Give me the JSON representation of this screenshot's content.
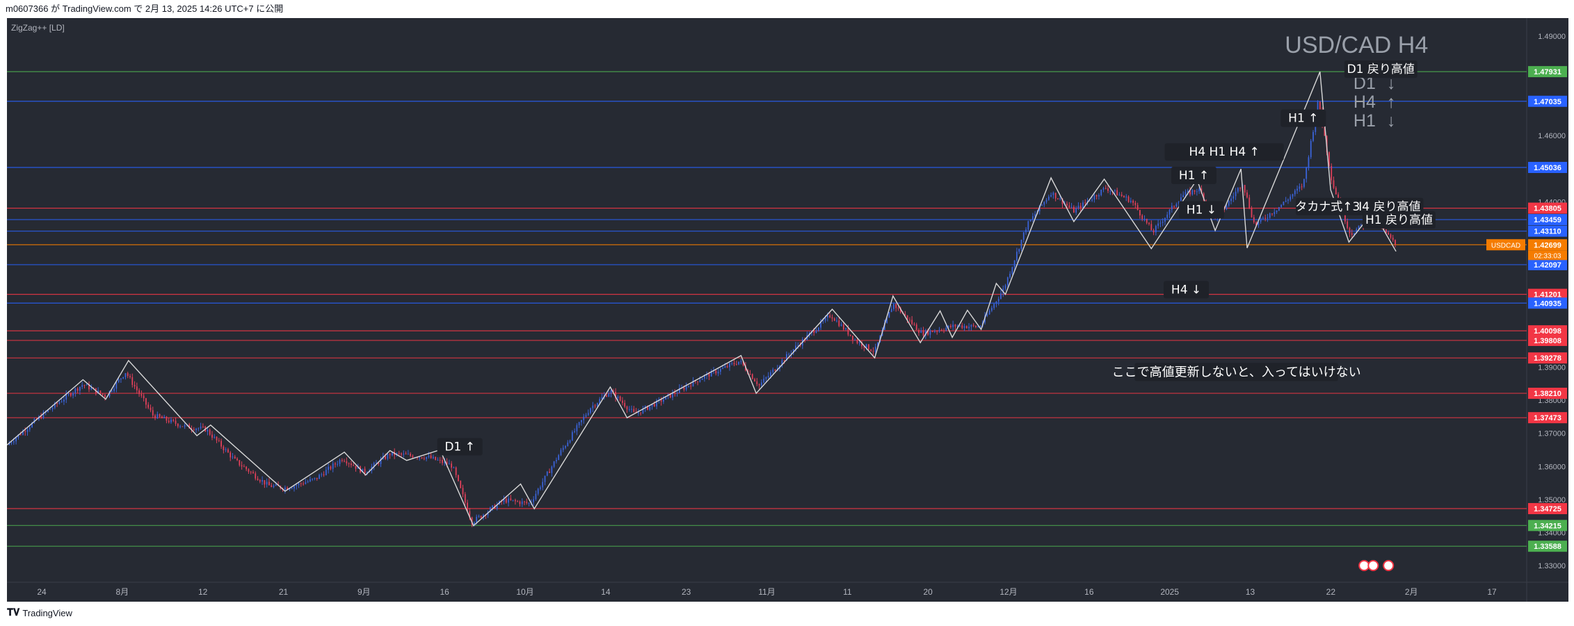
{
  "header": {
    "text": "m0607366 が TradingView.com で 2月 13, 2025 14:26 UTC+7 に公開"
  },
  "footer": {
    "logo_icon": "tradingview-logo-icon",
    "brand": "TradingView"
  },
  "colors": {
    "background": "#262a33",
    "candle_up": "#3a63d8",
    "candle_down": "#e0405a",
    "zigzag": "#d8d8d8",
    "support_line": "#f23645",
    "resistance_line": "#2962ff",
    "green_line": "#4caf50",
    "orange_label": "#f57c00"
  },
  "chart_data": {
    "type": "line",
    "title": "USD/CAD H4",
    "symbol": "USDCAD",
    "countdown": "02:33:03",
    "indicator_label": "ZigZag++ [LD]",
    "ylim": [
      1.325,
      1.4955
    ],
    "y_ticks": [
      {
        "value": 1.49,
        "label": "1.49000"
      },
      {
        "value": 1.46,
        "label": "1.46000"
      },
      {
        "value": 1.44,
        "label": "1.44000"
      },
      {
        "value": 1.39,
        "label": "1.39000"
      },
      {
        "value": 1.38,
        "label": "1.38000"
      },
      {
        "value": 1.37,
        "label": "1.37000"
      },
      {
        "value": 1.36,
        "label": "1.36000"
      },
      {
        "value": 1.35,
        "label": "1.35000"
      },
      {
        "value": 1.34,
        "label": "1.34000"
      },
      {
        "value": 1.33,
        "label": "1.33000"
      }
    ],
    "x_labels": [
      "24",
      "8月",
      "12",
      "21",
      "9月",
      "16",
      "10月",
      "14",
      "23",
      "11月",
      "11",
      "20",
      "12月",
      "16",
      "2025",
      "13",
      "22",
      "2月",
      "17"
    ],
    "price_badges": [
      {
        "value": 1.47931,
        "label": "1.47931",
        "color": "#4caf50"
      },
      {
        "value": 1.47035,
        "label": "1.47035",
        "color": "#2962ff"
      },
      {
        "value": 1.45036,
        "label": "1.45036",
        "color": "#2962ff"
      },
      {
        "value": 1.43805,
        "label": "1.43805",
        "color": "#f23645"
      },
      {
        "value": 1.43459,
        "label": "1.43459",
        "color": "#2962ff"
      },
      {
        "value": 1.4311,
        "label": "1.43110",
        "color": "#2962ff"
      },
      {
        "value": 1.42699,
        "label": "1.42699",
        "color": "#f57c00"
      },
      {
        "value": 1.42097,
        "label": "1.42097",
        "color": "#2962ff"
      },
      {
        "value": 1.41201,
        "label": "1.41201",
        "color": "#f23645"
      },
      {
        "value": 1.40935,
        "label": "1.40935",
        "color": "#2962ff"
      },
      {
        "value": 1.40098,
        "label": "1.40098",
        "color": "#f23645"
      },
      {
        "value": 1.39808,
        "label": "1.39808",
        "color": "#f23645"
      },
      {
        "value": 1.39278,
        "label": "1.39278",
        "color": "#f23645"
      },
      {
        "value": 1.3821,
        "label": "1.38210",
        "color": "#f23645"
      },
      {
        "value": 1.37473,
        "label": "1.37473",
        "color": "#f23645"
      },
      {
        "value": 1.34725,
        "label": "1.34725",
        "color": "#f23645"
      },
      {
        "value": 1.34215,
        "label": "1.34215",
        "color": "#4caf50"
      },
      {
        "value": 1.33588,
        "label": "1.33588",
        "color": "#4caf50"
      }
    ],
    "zigzag_series": [
      {
        "t": 0,
        "p": 1.3665
      },
      {
        "t": 5,
        "p": 1.3862
      },
      {
        "t": 6.5,
        "p": 1.3803
      },
      {
        "t": 8,
        "p": 1.392
      },
      {
        "t": 12.5,
        "p": 1.3693
      },
      {
        "t": 13.4,
        "p": 1.3725
      },
      {
        "t": 18.3,
        "p": 1.3525
      },
      {
        "t": 22.2,
        "p": 1.3643
      },
      {
        "t": 23.6,
        "p": 1.3574
      },
      {
        "t": 25.2,
        "p": 1.3648
      },
      {
        "t": 26.3,
        "p": 1.3618
      },
      {
        "t": 28.5,
        "p": 1.365
      },
      {
        "t": 30.7,
        "p": 1.3421
      },
      {
        "t": 33.8,
        "p": 1.3547
      },
      {
        "t": 34.7,
        "p": 1.3472
      },
      {
        "t": 39.7,
        "p": 1.384
      },
      {
        "t": 40.8,
        "p": 1.3747
      },
      {
        "t": 48.3,
        "p": 1.3935
      },
      {
        "t": 49.3,
        "p": 1.3821
      },
      {
        "t": 54.3,
        "p": 1.4075
      },
      {
        "t": 57.1,
        "p": 1.3928
      },
      {
        "t": 58.3,
        "p": 1.4115
      },
      {
        "t": 60.1,
        "p": 1.3974
      },
      {
        "t": 61.4,
        "p": 1.407
      },
      {
        "t": 62.2,
        "p": 1.399
      },
      {
        "t": 63.2,
        "p": 1.4072
      },
      {
        "t": 64.1,
        "p": 1.4014
      },
      {
        "t": 65.1,
        "p": 1.4153
      },
      {
        "t": 65.7,
        "p": 1.412
      },
      {
        "t": 68.7,
        "p": 1.4472
      },
      {
        "t": 70.2,
        "p": 1.434
      },
      {
        "t": 72.2,
        "p": 1.4468
      },
      {
        "t": 75.3,
        "p": 1.4258
      },
      {
        "t": 78.3,
        "p": 1.4467
      },
      {
        "t": 79.5,
        "p": 1.4313
      },
      {
        "t": 81.2,
        "p": 1.4499
      },
      {
        "t": 81.6,
        "p": 1.426
      },
      {
        "t": 86.4,
        "p": 1.4793
      },
      {
        "t": 87.1,
        "p": 1.4436
      },
      {
        "t": 88.3,
        "p": 1.4278
      },
      {
        "t": 89.9,
        "p": 1.437
      },
      {
        "t": 91.4,
        "p": 1.425
      }
    ],
    "candle_series": [
      {
        "t": 0,
        "p": 1.3665
      },
      {
        "t": 2.4,
        "p": 1.3758
      },
      {
        "t": 4.3,
        "p": 1.3825
      },
      {
        "t": 5,
        "p": 1.3848
      },
      {
        "t": 6.5,
        "p": 1.3812
      },
      {
        "t": 7.8,
        "p": 1.3885
      },
      {
        "t": 9.6,
        "p": 1.3755
      },
      {
        "t": 11.6,
        "p": 1.3722
      },
      {
        "t": 13.1,
        "p": 1.3712
      },
      {
        "t": 15,
        "p": 1.3618
      },
      {
        "t": 17.2,
        "p": 1.3542
      },
      {
        "t": 18.4,
        "p": 1.3535
      },
      {
        "t": 20.3,
        "p": 1.3562
      },
      {
        "t": 22.1,
        "p": 1.3625
      },
      {
        "t": 23.5,
        "p": 1.3582
      },
      {
        "t": 25.2,
        "p": 1.3638
      },
      {
        "t": 27.7,
        "p": 1.3628
      },
      {
        "t": 29.3,
        "p": 1.3602
      },
      {
        "t": 30.6,
        "p": 1.3432
      },
      {
        "t": 32.7,
        "p": 1.3498
      },
      {
        "t": 34.4,
        "p": 1.3488
      },
      {
        "t": 36.4,
        "p": 1.3642
      },
      {
        "t": 38.4,
        "p": 1.3778
      },
      {
        "t": 39.7,
        "p": 1.3828
      },
      {
        "t": 41.3,
        "p": 1.3758
      },
      {
        "t": 43.4,
        "p": 1.3808
      },
      {
        "t": 45.7,
        "p": 1.3868
      },
      {
        "t": 48.2,
        "p": 1.3918
      },
      {
        "t": 49.5,
        "p": 1.3845
      },
      {
        "t": 51.7,
        "p": 1.3952
      },
      {
        "t": 54.2,
        "p": 1.4058
      },
      {
        "t": 55.9,
        "p": 1.3978
      },
      {
        "t": 57.1,
        "p": 1.3948
      },
      {
        "t": 58.3,
        "p": 1.4092
      },
      {
        "t": 60.2,
        "p": 1.4002
      },
      {
        "t": 62.4,
        "p": 1.4025
      },
      {
        "t": 64,
        "p": 1.4022
      },
      {
        "t": 65.6,
        "p": 1.4138
      },
      {
        "t": 67.1,
        "p": 1.4328
      },
      {
        "t": 68.7,
        "p": 1.4428
      },
      {
        "t": 70.2,
        "p": 1.4372
      },
      {
        "t": 72.3,
        "p": 1.4442
      },
      {
        "t": 74,
        "p": 1.4402
      },
      {
        "t": 75.4,
        "p": 1.4308
      },
      {
        "t": 77.3,
        "p": 1.4418
      },
      {
        "t": 78.4,
        "p": 1.4438
      },
      {
        "t": 79.6,
        "p": 1.4348
      },
      {
        "t": 81.3,
        "p": 1.4458
      },
      {
        "t": 82.1,
        "p": 1.4328
      },
      {
        "t": 83.8,
        "p": 1.4388
      },
      {
        "t": 85.3,
        "p": 1.4452
      },
      {
        "t": 86.3,
        "p": 1.4708
      },
      {
        "t": 87.2,
        "p": 1.4458
      },
      {
        "t": 88.4,
        "p": 1.4302
      },
      {
        "t": 89.9,
        "p": 1.4352
      },
      {
        "t": 91.4,
        "p": 1.4268
      }
    ],
    "annotations": [
      {
        "id": "ann-d1-high",
        "text": "D1 戻り高値",
        "t": 90.4,
        "p": 1.4793,
        "size": 17
      },
      {
        "id": "ann-h4-high",
        "text": "H4 戻り高値",
        "t": 90.8,
        "p": 1.4378,
        "size": 17
      },
      {
        "id": "ann-h1-high",
        "text": "H1 戻り高値",
        "t": 91.6,
        "p": 1.4338,
        "size": 17
      },
      {
        "id": "ann-h1-up-top",
        "text": "H1 ↑",
        "t": 85.3,
        "p": 1.4645,
        "size": 17
      },
      {
        "id": "ann-h4-h1-h4",
        "text": "H4  H1  H4 ↑",
        "t": 80.1,
        "p": 1.4543,
        "size": 17
      },
      {
        "id": "ann-h1-up-mid",
        "text": "H1 ↑",
        "t": 78.1,
        "p": 1.4472,
        "size": 17
      },
      {
        "id": "ann-h1-down",
        "text": "H1 ↓",
        "t": 78.6,
        "p": 1.4368,
        "size": 17
      },
      {
        "id": "ann-takana",
        "text": "タカナ式↑3",
        "t": 86.9,
        "p": 1.4378,
        "size": 17
      },
      {
        "id": "ann-h4-down",
        "text": "H4 ↓",
        "t": 77.6,
        "p": 1.4127,
        "size": 17
      },
      {
        "id": "ann-d1-up",
        "text": "D1 ↑",
        "t": 29.8,
        "p": 1.3652,
        "size": 17
      },
      {
        "id": "ann-note",
        "text": "ここで高値更新しないと、入ってはいけない",
        "t": 80.9,
        "p": 1.3877,
        "size": 18
      }
    ],
    "legend_arrows": [
      {
        "id": "legend-d1",
        "text": "D1",
        "arrow": "↓"
      },
      {
        "id": "legend-h4",
        "text": "H4",
        "arrow": "↑"
      },
      {
        "id": "legend-h1",
        "text": "H1",
        "arrow": "↓"
      }
    ]
  }
}
